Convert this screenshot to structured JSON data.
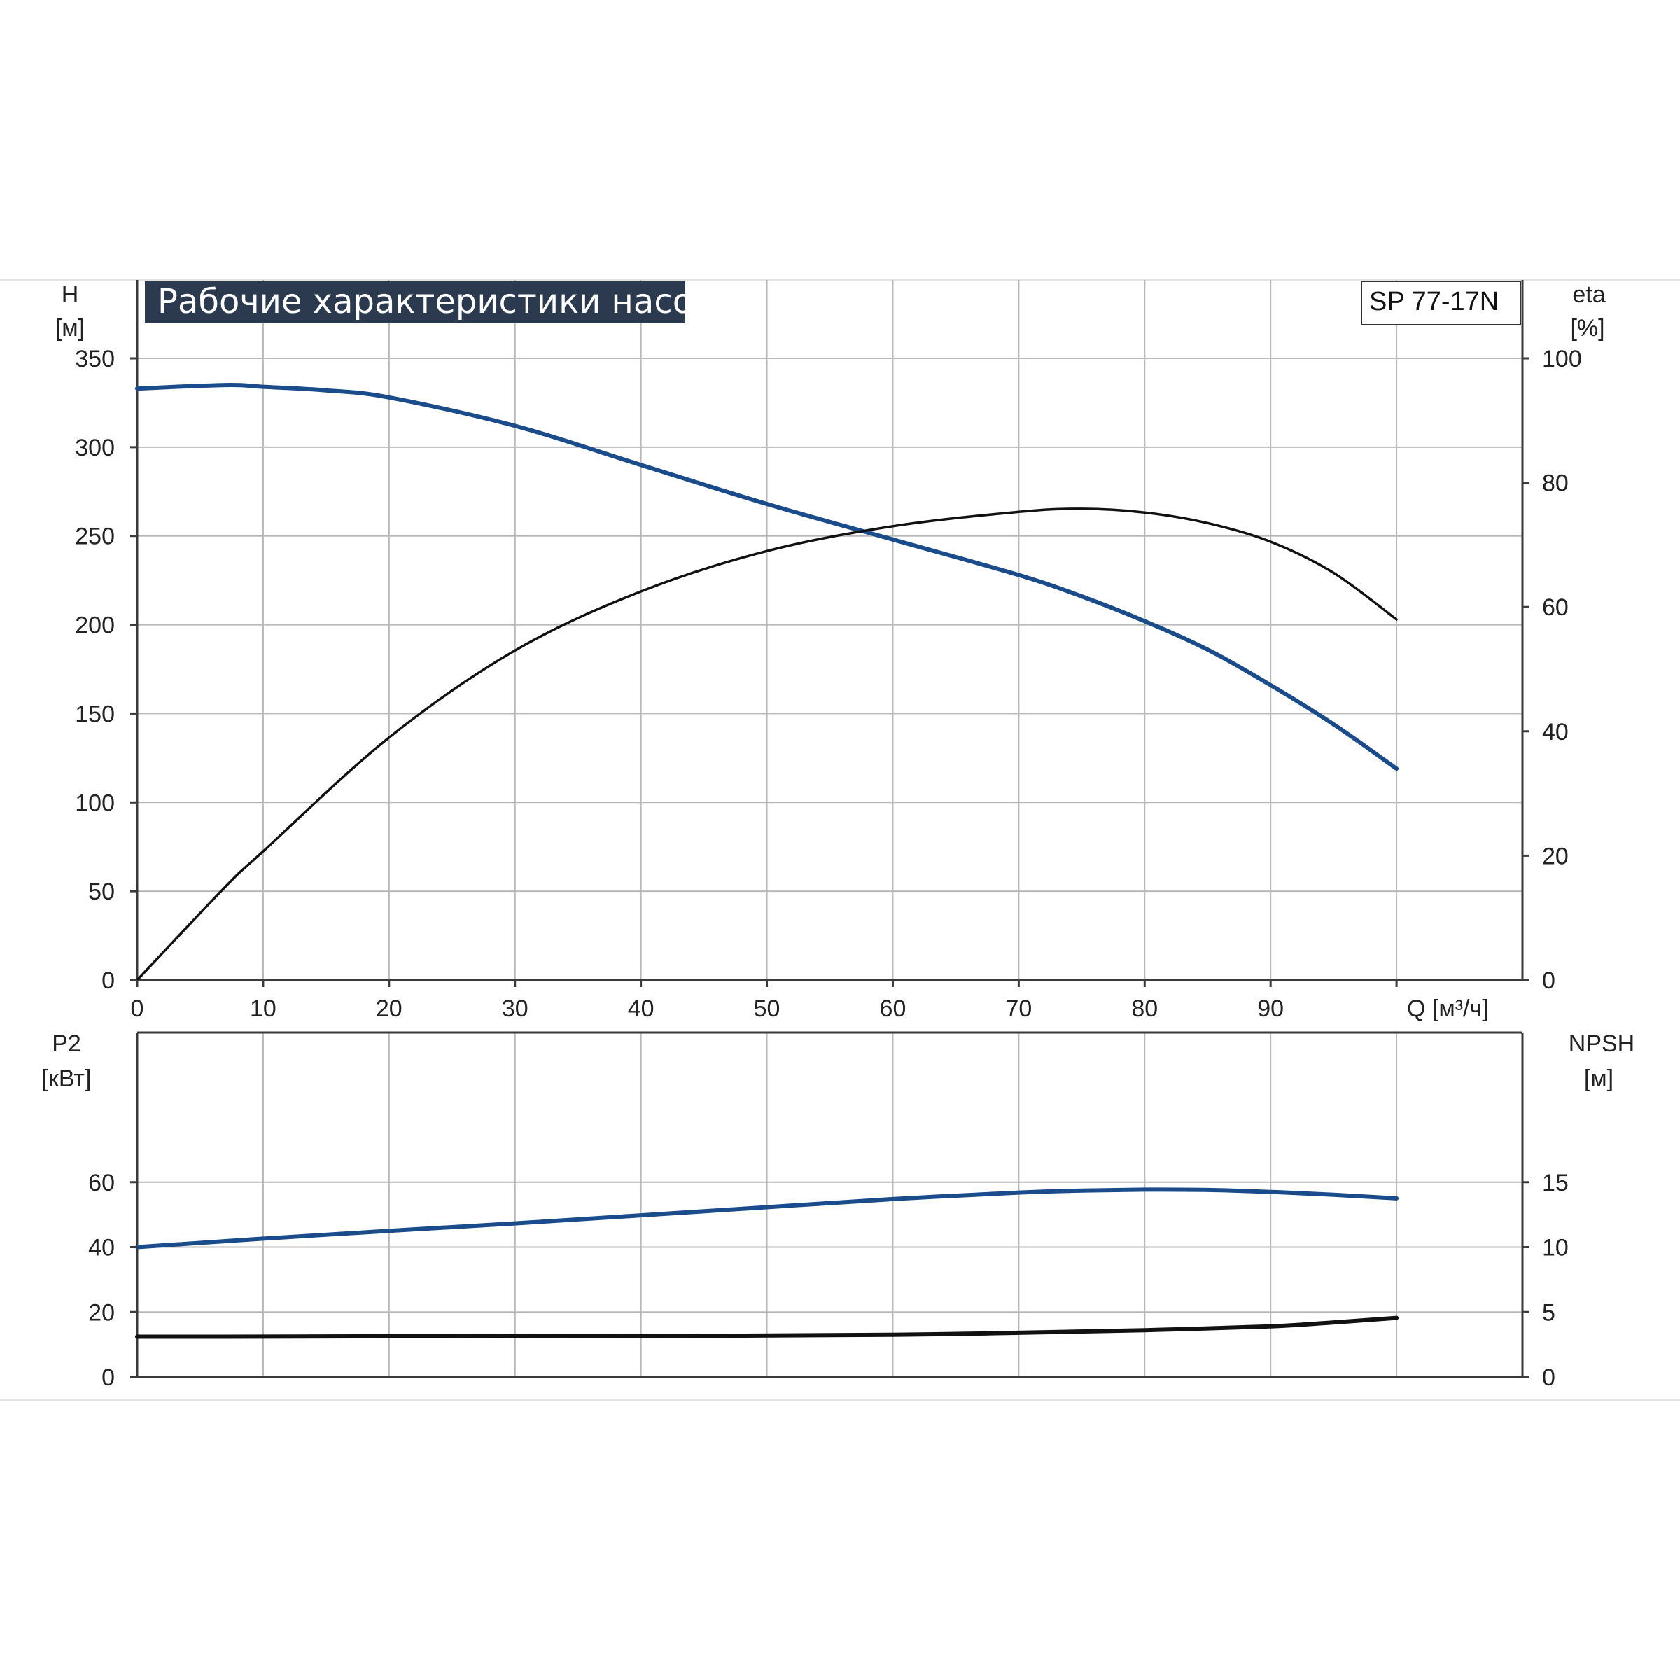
{
  "colors": {
    "blue": "#1a4c8c",
    "black": "#111111",
    "title_bg": "#2b3a4e",
    "grid": "#b8b8b8"
  },
  "title": "Рабочие характеристики насоса",
  "model": "SP 77-17N",
  "x_axis": {
    "label": "Q [м³/ч]",
    "ticks": [
      0,
      10,
      20,
      30,
      40,
      50,
      60,
      70,
      80,
      90
    ]
  },
  "chart_data": [
    {
      "type": "line",
      "title": "Рабочие характеристики насоса",
      "xlabel": "Q [м³/ч]",
      "xlim": [
        0,
        110
      ],
      "y_left": {
        "label_line1": "H",
        "label_line2": "[м]",
        "ylim": [
          0,
          350
        ],
        "ticks": [
          0,
          50,
          100,
          150,
          200,
          250,
          300,
          350
        ]
      },
      "y_right": {
        "label_line1": "eta",
        "label_line2": "[%]",
        "ylim": [
          0,
          100
        ],
        "ticks": [
          0,
          20,
          40,
          60,
          80,
          100
        ]
      },
      "grid": true,
      "series": [
        {
          "axis": "left",
          "color": "blue",
          "points": [
            [
              0,
              333
            ],
            [
              7,
              335
            ],
            [
              10,
              334
            ],
            [
              15,
              332
            ],
            [
              20,
              328
            ],
            [
              30,
              312
            ],
            [
              40,
              290
            ],
            [
              50,
              268
            ],
            [
              60,
              248
            ],
            [
              70,
              228
            ],
            [
              75,
              216
            ],
            [
              80,
              202
            ],
            [
              85,
              186
            ],
            [
              90,
              166
            ],
            [
              95,
              144
            ],
            [
              100,
              119
            ]
          ]
        },
        {
          "axis": "right",
          "color": "black",
          "points": [
            [
              0,
              0
            ],
            [
              7,
              15
            ],
            [
              10,
              20.7
            ],
            [
              20,
              39
            ],
            [
              30,
              53
            ],
            [
              40,
              62.5
            ],
            [
              50,
              69
            ],
            [
              60,
              73
            ],
            [
              70,
              75.3
            ],
            [
              75,
              75.8
            ],
            [
              80,
              75.2
            ],
            [
              85,
              73.5
            ],
            [
              90,
              70.5
            ],
            [
              95,
              65.5
            ],
            [
              100,
              58
            ]
          ]
        }
      ]
    },
    {
      "type": "line",
      "xlim": [
        0,
        110
      ],
      "y_left": {
        "label_line1": "P2",
        "label_line2": "[кВт]",
        "ylim": [
          0,
          80
        ],
        "ticks": [
          0,
          20,
          40,
          60
        ]
      },
      "y_right": {
        "label_line1": "NPSH",
        "label_line2": "[м]",
        "ylim": [
          0,
          20
        ],
        "ticks": [
          0,
          5,
          10,
          15
        ]
      },
      "grid": true,
      "series": [
        {
          "axis": "left",
          "color": "blue",
          "points": [
            [
              0,
              40
            ],
            [
              10,
              42.6
            ],
            [
              20,
              45
            ],
            [
              30,
              47.3
            ],
            [
              40,
              49.8
            ],
            [
              50,
              52.3
            ],
            [
              60,
              54.8
            ],
            [
              70,
              56.8
            ],
            [
              75,
              57.4
            ],
            [
              80,
              57.7
            ],
            [
              85,
              57.6
            ],
            [
              90,
              57
            ],
            [
              95,
              56.1
            ],
            [
              100,
              55
            ]
          ]
        },
        {
          "axis": "right",
          "color": "black",
          "points": [
            [
              0,
              3.1
            ],
            [
              7,
              3.1
            ],
            [
              20,
              3.13
            ],
            [
              40,
              3.15
            ],
            [
              60,
              3.25
            ],
            [
              70,
              3.4
            ],
            [
              80,
              3.6
            ],
            [
              90,
              3.9
            ],
            [
              95,
              4.2
            ],
            [
              100,
              4.55
            ]
          ]
        }
      ]
    }
  ]
}
